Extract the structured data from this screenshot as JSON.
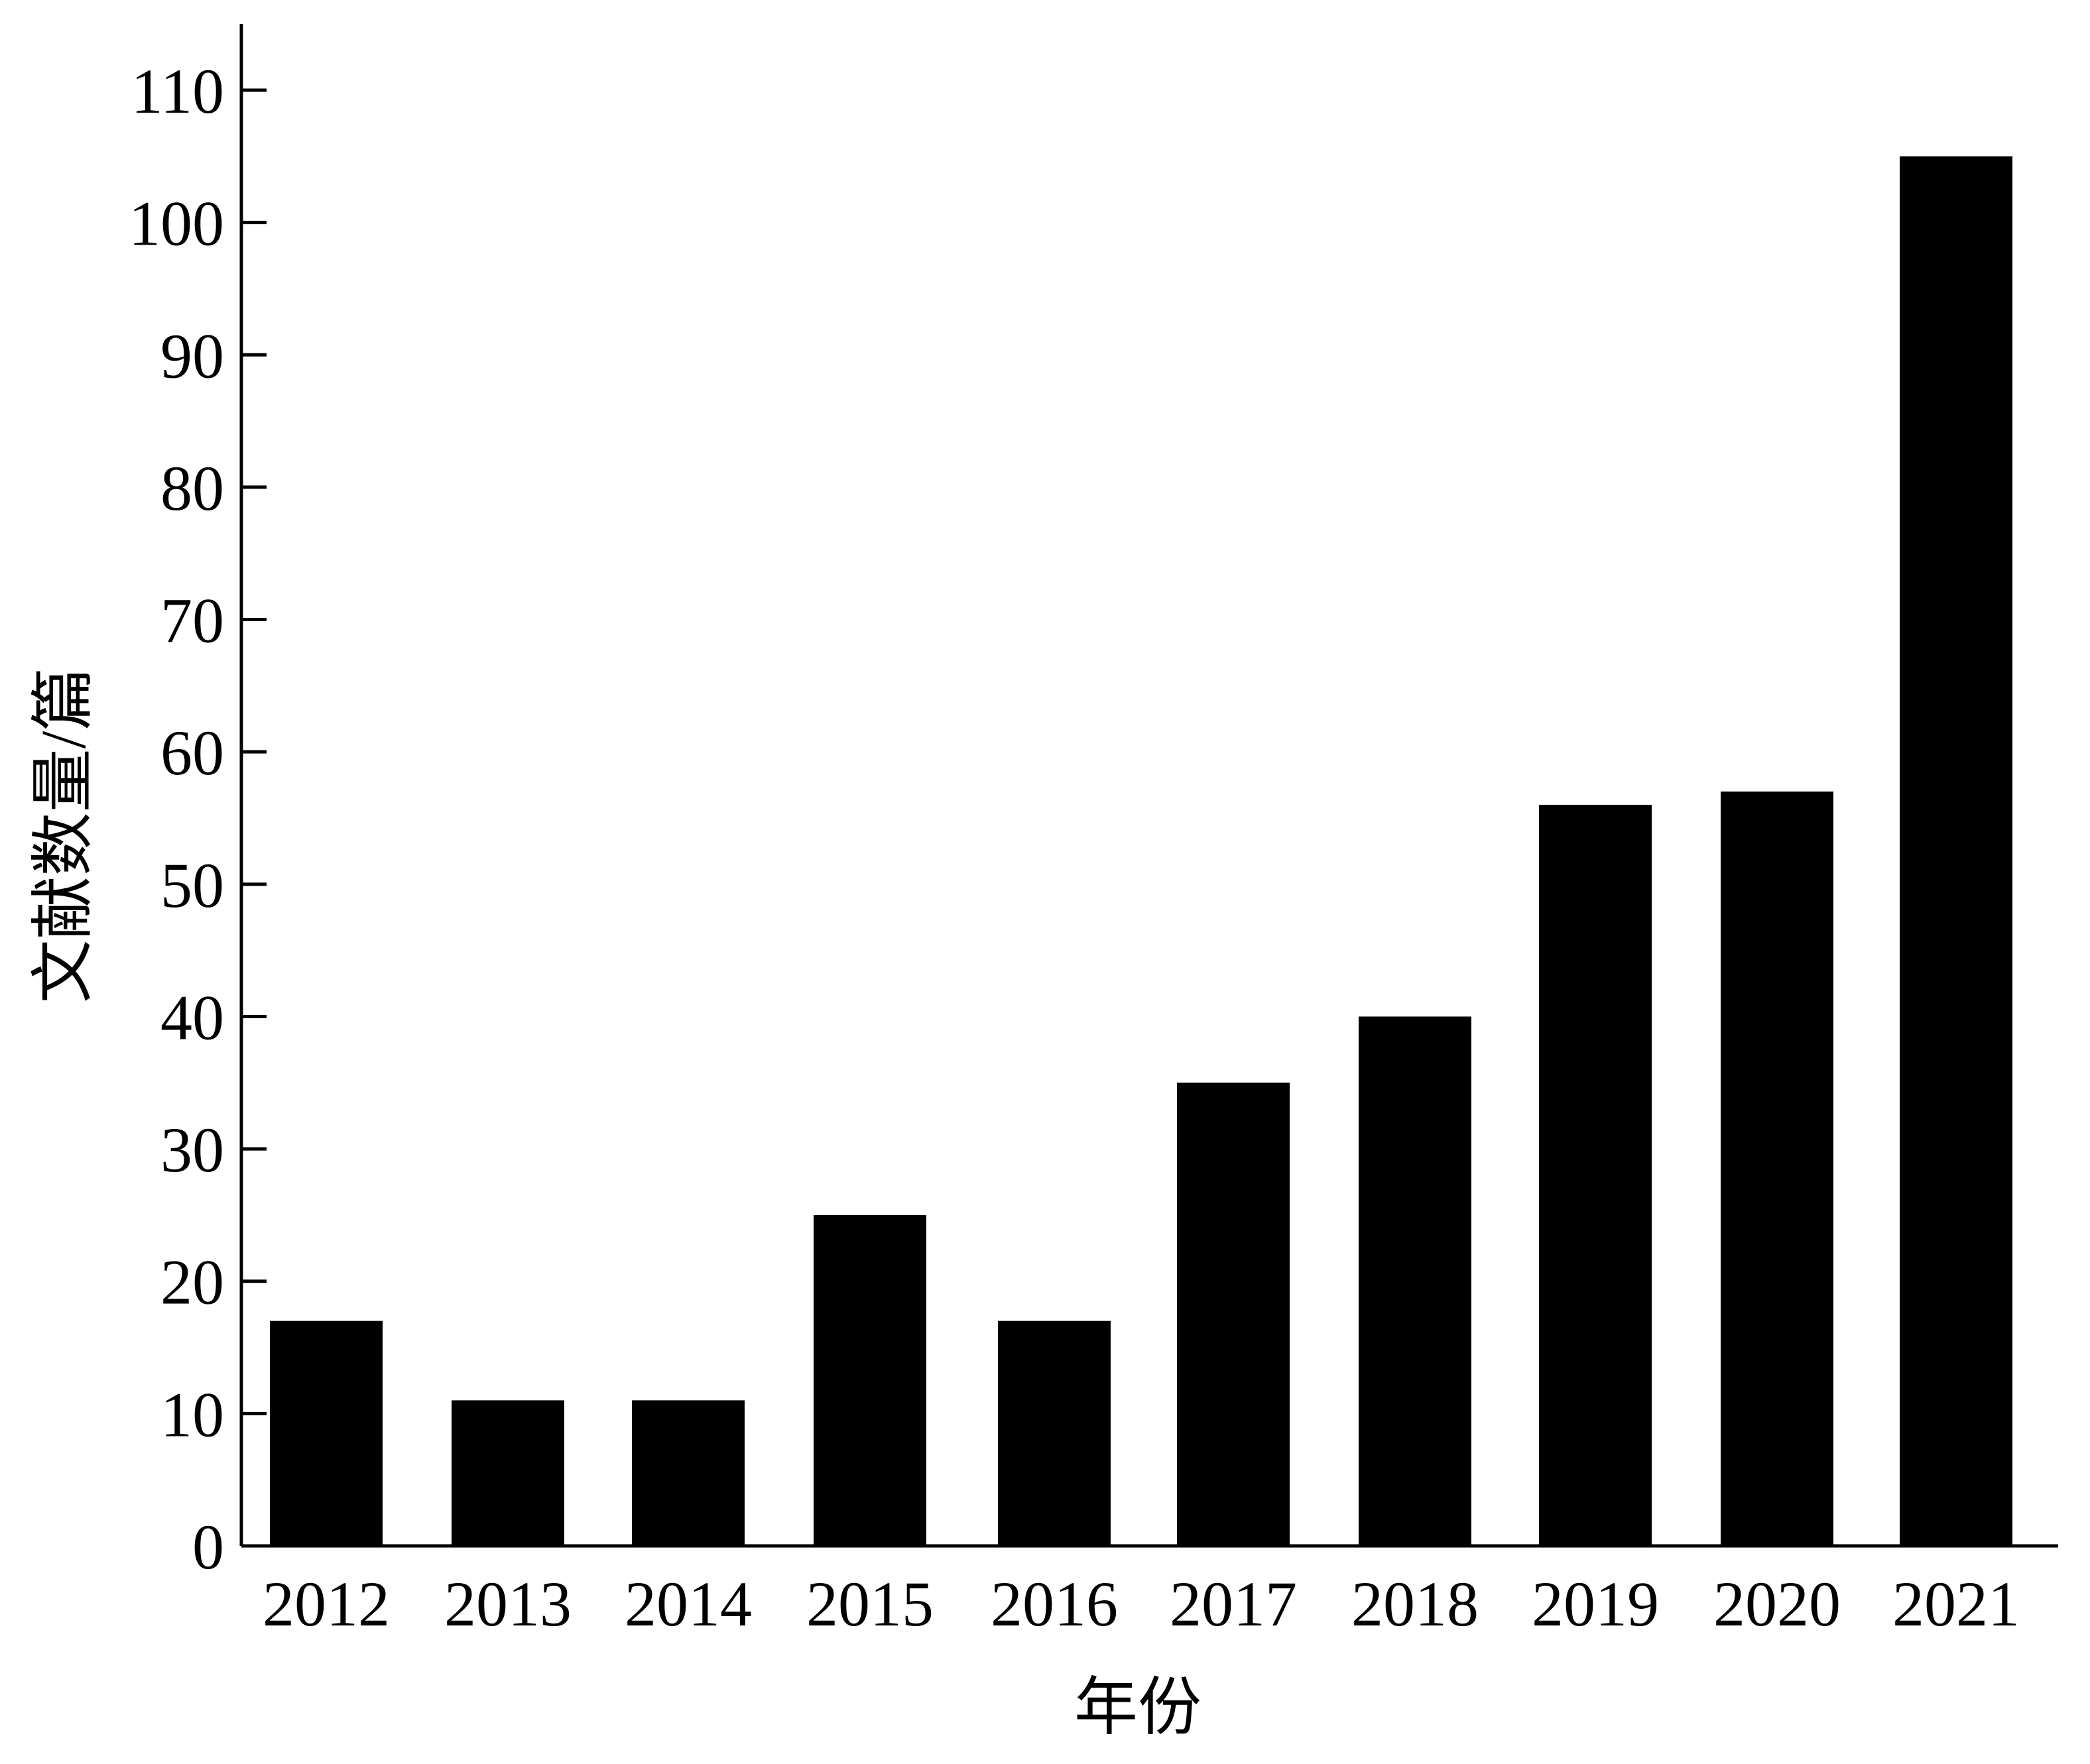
{
  "chart_data": {
    "type": "bar",
    "title": "",
    "xlabel": "年份",
    "ylabel": "文献数量/篇",
    "categories": [
      "2012",
      "2013",
      "2014",
      "2015",
      "2016",
      "2017",
      "2018",
      "2019",
      "2020",
      "2021"
    ],
    "values": [
      17,
      11,
      11,
      25,
      17,
      35,
      40,
      56,
      57,
      105
    ],
    "ylim": [
      0,
      110
    ],
    "yticks": [
      0,
      10,
      20,
      30,
      40,
      50,
      60,
      70,
      80,
      90,
      100,
      110
    ],
    "grid": false,
    "legend": "none",
    "bar_color": "#000000"
  }
}
